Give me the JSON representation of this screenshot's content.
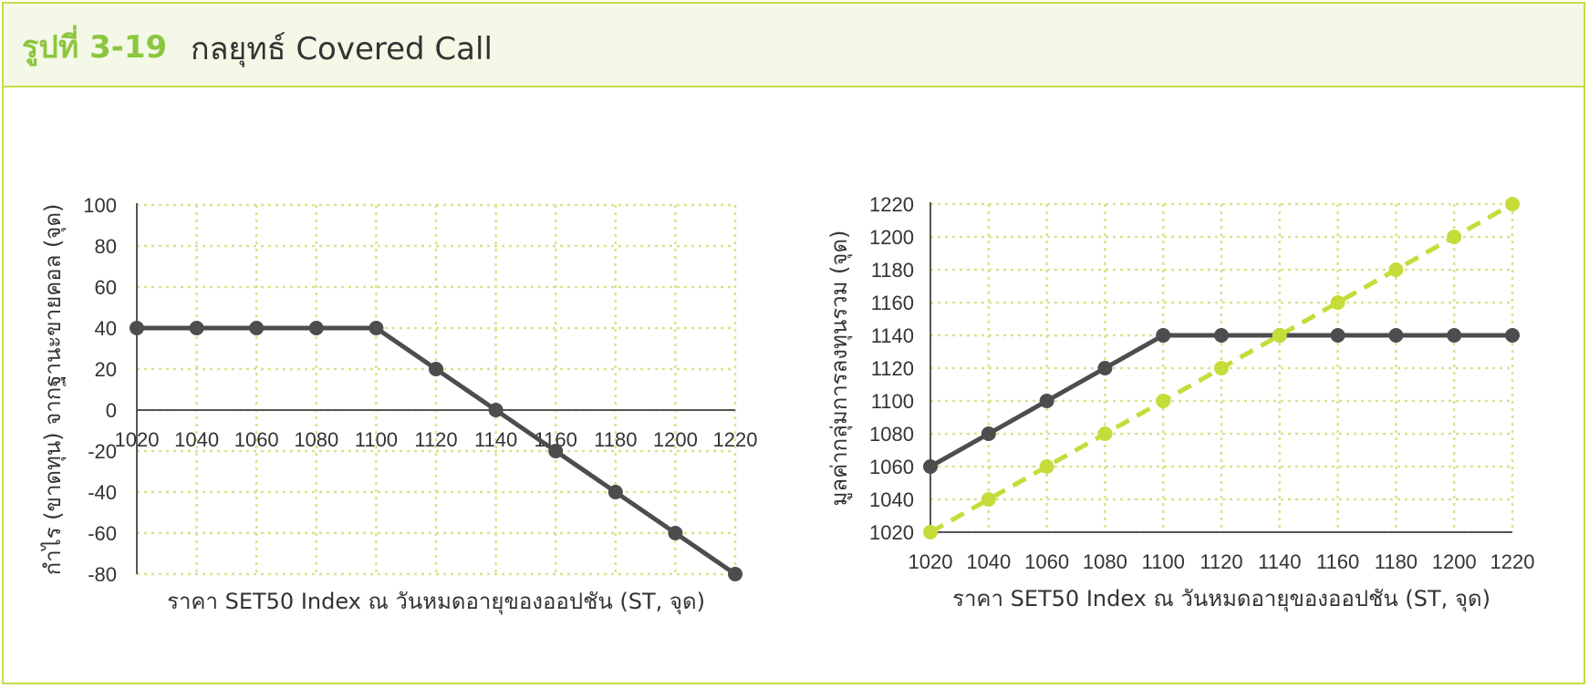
{
  "figure": {
    "number": "รูปที่ 3-19",
    "title": "กลยุทธ์ Covered Call"
  },
  "colors": {
    "accent": "#c5dc4a",
    "header_bg": "#f4f8e6",
    "dark_series": "#4d4d4d",
    "green_series": "#c5dc3a",
    "grid": "#d4e58a"
  },
  "chart_data": [
    {
      "type": "line",
      "xlabel": "ราคา SET50 Index ณ วันหมดอายุของออปชัน (ST, จุด)",
      "ylabel": "กำไร (ขาดทุน) จากฐานะขายคอล (จุด)",
      "x": [
        1020,
        1040,
        1060,
        1080,
        1100,
        1120,
        1140,
        1160,
        1180,
        1200,
        1220
      ],
      "xlim": [
        1020,
        1220
      ],
      "ylim": [
        -80,
        100
      ],
      "yticks": [
        -80,
        -60,
        -40,
        -20,
        0,
        20,
        40,
        60,
        80,
        100
      ],
      "xticks": [
        1020,
        1040,
        1060,
        1080,
        1100,
        1120,
        1140,
        1160,
        1180,
        1200,
        1220
      ],
      "grid": true,
      "series": [
        {
          "values": [
            40,
            40,
            40,
            40,
            40,
            20,
            0,
            -20,
            -40,
            -60,
            -80
          ],
          "style": "solid",
          "color": "#4d4d4d"
        }
      ]
    },
    {
      "type": "line",
      "xlabel": "ราคา SET50 Index ณ วันหมดอายุของออปชัน (ST, จุด)",
      "ylabel": "มูลค่ากลุ่มการลงทุนรวม (จุด)",
      "x": [
        1020,
        1040,
        1060,
        1080,
        1100,
        1120,
        1140,
        1160,
        1180,
        1200,
        1220
      ],
      "xlim": [
        1020,
        1220
      ],
      "ylim": [
        1020,
        1220
      ],
      "yticks": [
        1020,
        1040,
        1060,
        1080,
        1100,
        1120,
        1140,
        1160,
        1180,
        1200,
        1220
      ],
      "xticks": [
        1020,
        1040,
        1060,
        1080,
        1100,
        1120,
        1140,
        1160,
        1180,
        1200,
        1220
      ],
      "grid": true,
      "series": [
        {
          "values": [
            1060,
            1080,
            1100,
            1120,
            1140,
            1140,
            1140,
            1140,
            1140,
            1140,
            1140
          ],
          "style": "solid",
          "color": "#4d4d4d"
        },
        {
          "values": [
            1020,
            1040,
            1060,
            1080,
            1100,
            1120,
            1140,
            1160,
            1180,
            1200,
            1220
          ],
          "style": "dashed",
          "color": "#c5dc3a"
        }
      ]
    }
  ]
}
